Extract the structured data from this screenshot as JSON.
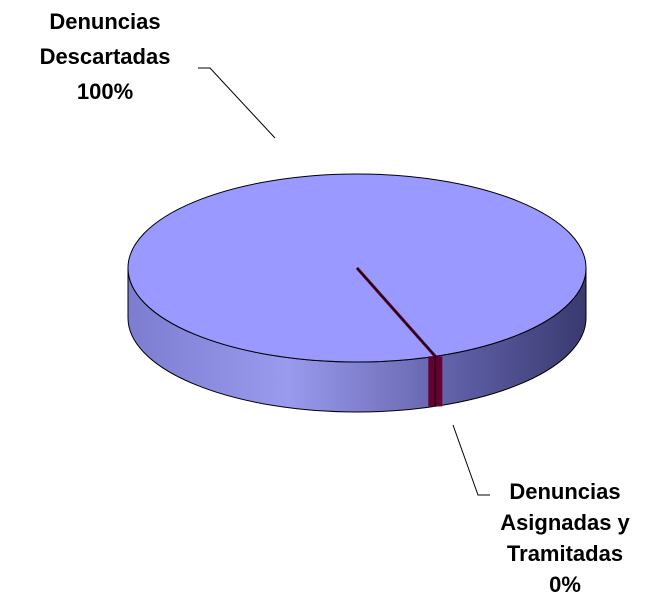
{
  "chart_data": {
    "type": "pie",
    "categories": [
      "Denuncias Descartadas",
      "Denuncias Asignadas y Tramitadas"
    ],
    "values": [
      100,
      0
    ],
    "value_labels": [
      "100%",
      "0%"
    ],
    "colors": [
      "#9999ff",
      "#660033"
    ]
  }
}
